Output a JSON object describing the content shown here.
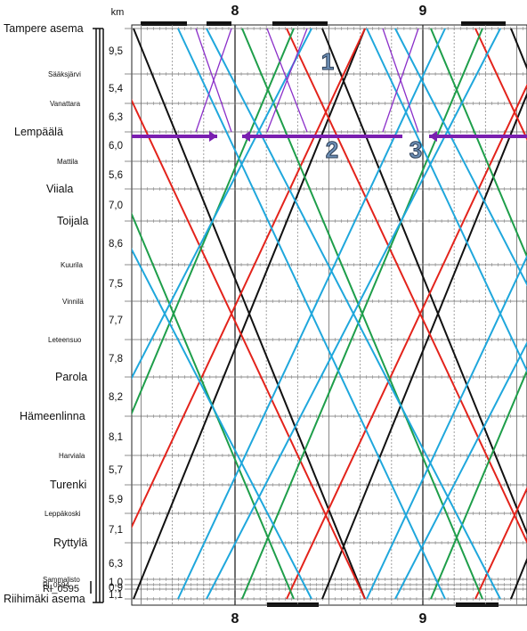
{
  "header": {
    "km_label": "km"
  },
  "hours": [
    {
      "label": "8",
      "minute": 60
    },
    {
      "label": "9",
      "minute": 120
    }
  ],
  "time_axis": {
    "start_minute": 30,
    "end_minute": 153
  },
  "stations": [
    {
      "name": "Tampere asema",
      "size": "large",
      "km_to_next": "9,5"
    },
    {
      "name": "Sääksjärvi",
      "size": "small",
      "km_to_next": "5,4"
    },
    {
      "name": "Vanattara",
      "size": "small",
      "km_to_next": "6,3"
    },
    {
      "name": "Lempäälä",
      "size": "large",
      "km_to_next": "6,0"
    },
    {
      "name": "Mattila",
      "size": "small",
      "km_to_next": "5,6"
    },
    {
      "name": "Viiala",
      "size": "large",
      "km_to_next": "7,0"
    },
    {
      "name": "Toijala",
      "size": "large",
      "km_to_next": "8,6"
    },
    {
      "name": "Kuurila",
      "size": "small",
      "km_to_next": "7,5"
    },
    {
      "name": "Vinnilä",
      "size": "small",
      "km_to_next": "7,7"
    },
    {
      "name": "Leteensuo",
      "size": "small",
      "km_to_next": "7,8"
    },
    {
      "name": "Parola",
      "size": "large",
      "km_to_next": "8,2"
    },
    {
      "name": "Hämeenlinna",
      "size": "large",
      "km_to_next": "8,1"
    },
    {
      "name": "Harviala",
      "size": "small",
      "km_to_next": "5,7"
    },
    {
      "name": "Turenki",
      "size": "large",
      "km_to_next": "5,9"
    },
    {
      "name": "Leppäkoski",
      "size": "small",
      "km_to_next": "7,1"
    },
    {
      "name": "Ryttylä",
      "size": "large",
      "km_to_next": "6,3"
    },
    {
      "name": "Sammalisto",
      "size": "small",
      "km_to_next": "1,0"
    },
    {
      "name": "Rl_0594",
      "size": "small",
      "km_to_next": "0,9"
    },
    {
      "name": "Rl_0595",
      "size": "medium",
      "km_to_next": "1,1"
    },
    {
      "name": "Riihimäki asema",
      "size": "large",
      "km_to_next": ""
    }
  ],
  "callouts": [
    "1",
    "2",
    "3"
  ],
  "colors": {
    "red": "#e3231b",
    "green": "#1e9e4a",
    "blue": "#1fa7dc",
    "black": "#111111",
    "purple": "#8b2fc9",
    "arrow": "#7a1fb0",
    "callout_fill": "#6d8fb5",
    "callout_stroke": "#2c3e57"
  }
}
